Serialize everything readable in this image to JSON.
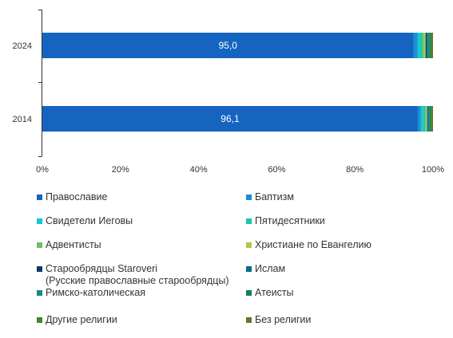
{
  "chart_data": {
    "type": "bar",
    "orientation": "horizontal",
    "stacked": true,
    "categories": [
      "2024",
      "2014"
    ],
    "xlim": [
      0,
      100
    ],
    "x_ticks": [
      "0%",
      "20%",
      "40%",
      "60%",
      "80%",
      "100%"
    ],
    "grid": false,
    "legend_position": "bottom",
    "series": [
      {
        "name": "Православие",
        "color": "#1565c0",
        "values": [
          95.0,
          96.1
        ],
        "labels": [
          "95,0",
          "96,1"
        ]
      },
      {
        "name": "Баптизм",
        "color": "#1a8fd1",
        "values": [
          1.0,
          0.8
        ]
      },
      {
        "name": "Свидетели Иеговы",
        "color": "#15c4d6",
        "values": [
          0.7,
          0.6
        ]
      },
      {
        "name": "Пятидесятники",
        "color": "#19c9a5",
        "values": [
          0.6,
          0.5
        ]
      },
      {
        "name": "Адвентисты",
        "color": "#6cc06a",
        "values": [
          0.4,
          0.3
        ]
      },
      {
        "name": "Христиане по Евангелию",
        "color": "#a8cc4a",
        "values": [
          0.4,
          0.2
        ]
      },
      {
        "name": "Старообрядцы Staroveri\n(Русские православные старообрядцы)",
        "color": "#0b3a66",
        "values": [
          0.3,
          0.2
        ]
      },
      {
        "name": "Ислам",
        "color": "#0a6a8a",
        "values": [
          0.3,
          0.2
        ]
      },
      {
        "name": "Римско-католическая",
        "color": "#138a8a",
        "values": [
          0.3,
          0.2
        ]
      },
      {
        "name": "Атеисты",
        "color": "#12805a",
        "values": [
          0.3,
          0.3
        ]
      },
      {
        "name": "Другие религии",
        "color": "#3a8a2a",
        "values": [
          0.4,
          0.3
        ]
      },
      {
        "name": "Без религии",
        "color": "#5d7a2a",
        "values": [
          0.3,
          0.3
        ]
      }
    ]
  }
}
